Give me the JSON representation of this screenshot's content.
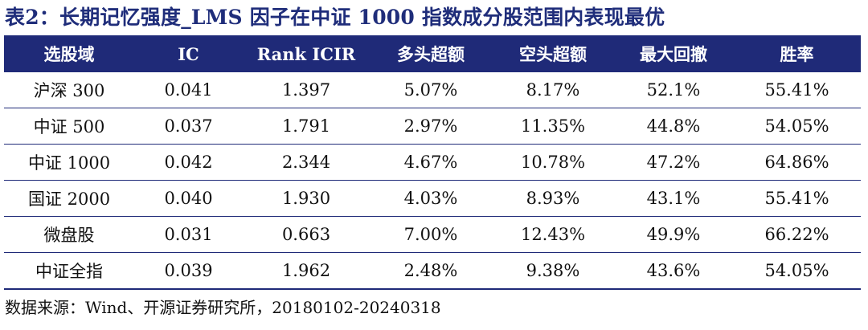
{
  "title": "表2：长期记忆强度_LMS 因子在中证 1000 指数成分股范围内表现最优",
  "table": {
    "headers": [
      "选股域",
      "IC",
      "Rank ICIR",
      "多头超额",
      "空头超额",
      "最大回撤",
      "胜率"
    ],
    "rows": [
      [
        "沪深 300",
        "0.041",
        "1.397",
        "5.07%",
        "8.17%",
        "52.1%",
        "55.41%"
      ],
      [
        "中证 500",
        "0.037",
        "1.791",
        "2.97%",
        "11.35%",
        "44.8%",
        "54.05%"
      ],
      [
        "中证 1000",
        "0.042",
        "2.344",
        "4.67%",
        "10.78%",
        "47.2%",
        "64.86%"
      ],
      [
        "国证 2000",
        "0.040",
        "1.930",
        "4.03%",
        "8.93%",
        "43.1%",
        "55.41%"
      ],
      [
        "微盘股",
        "0.031",
        "0.663",
        "7.00%",
        "12.43%",
        "49.9%",
        "66.22%"
      ],
      [
        "中证全指",
        "0.039",
        "1.962",
        "2.48%",
        "9.38%",
        "43.6%",
        "54.05%"
      ]
    ]
  },
  "source": "数据来源：Wind、开源证券研究所，20180102-20240318",
  "colors": {
    "header_bg": "#1f2a78",
    "title_color": "#1f2d7a"
  }
}
